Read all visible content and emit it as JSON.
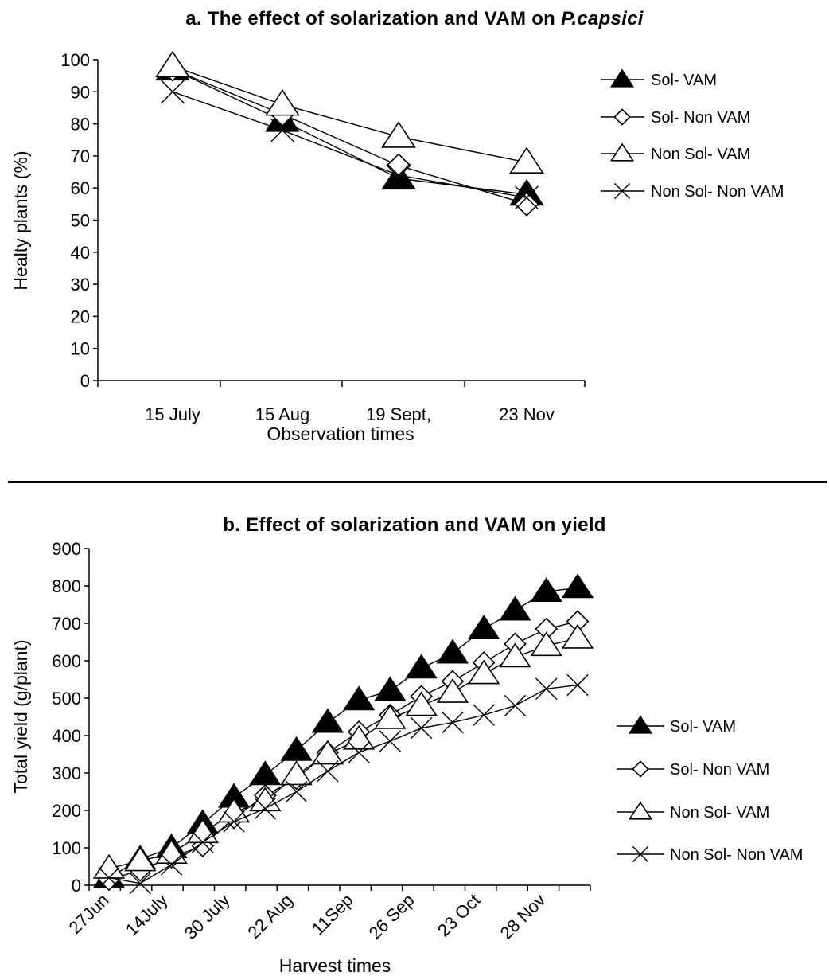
{
  "chart_data": [
    {
      "type": "line",
      "title": "a. The effect of solarization and VAM on ",
      "title_italic": "P.capsici",
      "xlabel": "Observation times",
      "ylabel": "Healty plants (%)",
      "ylim": [
        0,
        100
      ],
      "yticks": [
        0,
        10,
        20,
        30,
        40,
        50,
        60,
        70,
        80,
        90,
        100
      ],
      "categories": [
        "15 July",
        "15 Aug",
        "19 Sept,",
        "23 Nov"
      ],
      "legend_position": "right",
      "series": [
        {
          "name": "Sol- VAM",
          "marker": "filled-triangle",
          "values": [
            97,
            81,
            63,
            58
          ]
        },
        {
          "name": "Sol- Non VAM",
          "marker": "open-diamond",
          "values": [
            97,
            83,
            67,
            55
          ]
        },
        {
          "name": "Non Sol- VAM",
          "marker": "open-triangle",
          "values": [
            98,
            86,
            76,
            68
          ]
        },
        {
          "name": "Non Sol- Non VAM",
          "marker": "cross",
          "values": [
            90,
            78,
            64,
            57
          ]
        }
      ]
    },
    {
      "type": "line",
      "title": "b. Effect of solarization and VAM on yield",
      "xlabel": "Harvest times",
      "ylabel": "Total yield (g/plant)",
      "ylim": [
        0,
        900
      ],
      "yticks": [
        0,
        100,
        200,
        300,
        400,
        500,
        600,
        700,
        800,
        900
      ],
      "xtick_labels": [
        "27Jun",
        "14July",
        "30 July",
        "22 Aug",
        "11Sep",
        "26 Sep",
        "23 Oct",
        "28 Nov"
      ],
      "legend_position": "right",
      "series": [
        {
          "name": "Sol- VAM",
          "marker": "filled-triangle",
          "values": [
            20,
            70,
            100,
            165,
            235,
            295,
            360,
            435,
            495,
            520,
            580,
            620,
            685,
            735,
            785,
            795
          ]
        },
        {
          "name": "Sol- Non VAM",
          "marker": "open-diamond",
          "values": [
            15,
            40,
            75,
            105,
            180,
            240,
            285,
            355,
            410,
            455,
            505,
            545,
            595,
            645,
            685,
            705
          ]
        },
        {
          "name": "Non Sol- VAM",
          "marker": "open-triangle",
          "values": [
            45,
            65,
            85,
            140,
            195,
            225,
            295,
            350,
            390,
            445,
            480,
            515,
            565,
            610,
            640,
            660
          ]
        },
        {
          "name": "Non Sol- Non VAM",
          "marker": "cross",
          "values": [
            20,
            5,
            55,
            115,
            170,
            205,
            250,
            305,
            355,
            385,
            420,
            435,
            455,
            480,
            525,
            535
          ]
        }
      ]
    }
  ]
}
